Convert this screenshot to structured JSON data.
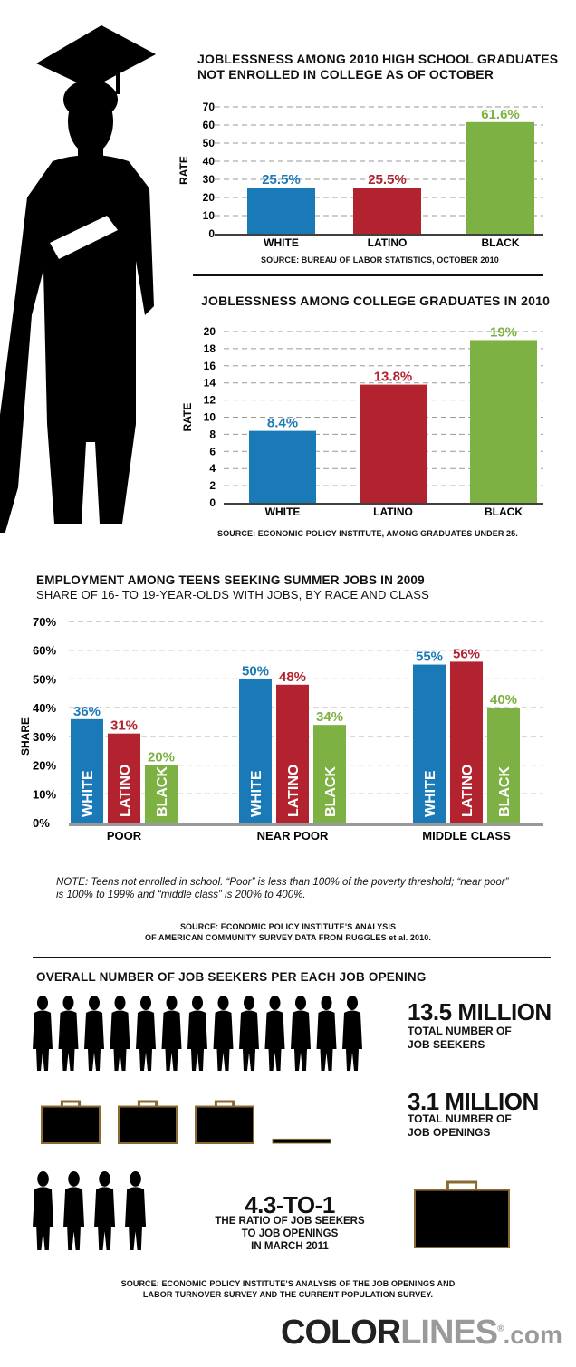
{
  "colors": {
    "white": "#1a7ab8",
    "latino": "#b3232f",
    "black": "#7db143",
    "dark": "#111111",
    "briefcase": "#8a6a32"
  },
  "chart1": {
    "title_line1": "JOBLESSNESS AMONG 2010 HIGH SCHOOL GRADUATES",
    "title_line2": "NOT ENROLLED IN COLLEGE AS OF OCTOBER",
    "source": "SOURCE: BUREAU OF LABOR STATISTICS, OCTOBER 2010"
  },
  "chart2": {
    "title": "JOBLESSNESS AMONG COLLEGE GRADUATES IN 2010",
    "source": "SOURCE: ECONOMIC POLICY INSTITUTE, AMONG GRADUATES UNDER 25."
  },
  "chart3": {
    "title": "EMPLOYMENT AMONG TEENS SEEKING SUMMER JOBS IN 2009",
    "subtitle": "SHARE OF 16- TO 19-YEAR-OLDS WITH JOBS, BY RACE AND CLASS",
    "note_line1": "NOTE: Teens not enrolled in school. “Poor” is less than 100% of the poverty threshold; “near poor”",
    "note_line2": "is 100% to 199% and “middle class” is 200% to 400%.",
    "source_line1": "SOURCE: ECONOMIC POLICY INSTITUTE’S ANALYSIS",
    "source_line2": "OF AMERICAN COMMUNITY SURVEY DATA FROM RUGGLES et al. 2010."
  },
  "seekers": {
    "title": "OVERALL NUMBER OF JOB SEEKERS PER EACH JOB OPENING",
    "seekers_value": "13.5 MILLION",
    "seekers_label1": "TOTAL NUMBER OF",
    "seekers_label2": "JOB SEEKERS",
    "openings_value": "3.1 MILLION",
    "openings_label1": "TOTAL NUMBER OF",
    "openings_label2": "JOB OPENINGS",
    "ratio_value": "4.3-TO-1",
    "ratio_label1": "THE RATIO OF JOB SEEKERS",
    "ratio_label2": "TO JOB OPENINGS",
    "ratio_label3": "IN MARCH 2011",
    "source_line1": "SOURCE: ECONOMIC POLICY INSTITUTE’S ANALYSIS  OF THE JOB OPENINGS AND",
    "source_line2": "LABOR TURNOVER SURVEY AND THE CURRENT POPULATION SURVEY.",
    "seeker_icon_count": 13.5,
    "opening_icon_count": 3.1,
    "ratio_icon_count": 4.3
  },
  "logo": {
    "part1": "COLOR",
    "part2": "LINES",
    "part3": ".com",
    "reg": "®"
  },
  "chart_data": [
    {
      "type": "bar",
      "categories": [
        "WHITE",
        "LATINO",
        "BLACK"
      ],
      "values": [
        25.5,
        25.5,
        61.6
      ],
      "data_labels": [
        "25.5%",
        "25.5%",
        "61.6%"
      ],
      "ylabel": "RATE",
      "ylim": [
        0,
        70
      ],
      "yticks": [
        "0",
        "10",
        "20",
        "30",
        "40",
        "50",
        "60",
        "70"
      ],
      "grid": true
    },
    {
      "type": "bar",
      "categories": [
        "WHITE",
        "LATINO",
        "BLACK"
      ],
      "values": [
        8.4,
        13.8,
        19
      ],
      "data_labels": [
        "8.4%",
        "13.8%",
        "19%"
      ],
      "ylabel": "RATE",
      "ylim": [
        0,
        20
      ],
      "yticks": [
        "0",
        "2",
        "4",
        "6",
        "8",
        "10",
        "12",
        "14",
        "16",
        "18",
        "20"
      ],
      "grid": true
    },
    {
      "type": "bar",
      "categories": [
        "POOR",
        "NEAR POOR",
        "MIDDLE CLASS"
      ],
      "series": [
        {
          "name": "WHITE",
          "values": [
            36,
            50,
            55
          ],
          "data_labels": [
            "36%",
            "50%",
            "55%"
          ]
        },
        {
          "name": "LATINO",
          "values": [
            31,
            48,
            56
          ],
          "data_labels": [
            "31%",
            "48%",
            "56%"
          ]
        },
        {
          "name": "BLACK",
          "values": [
            20,
            34,
            40
          ],
          "data_labels": [
            "20%",
            "34%",
            "40%"
          ]
        }
      ],
      "ylabel": "SHARE",
      "ylim": [
        0,
        70
      ],
      "yticks": [
        "0%",
        "10%",
        "20%",
        "30%",
        "40%",
        "50%",
        "60%",
        "70%"
      ],
      "grid": true
    }
  ]
}
